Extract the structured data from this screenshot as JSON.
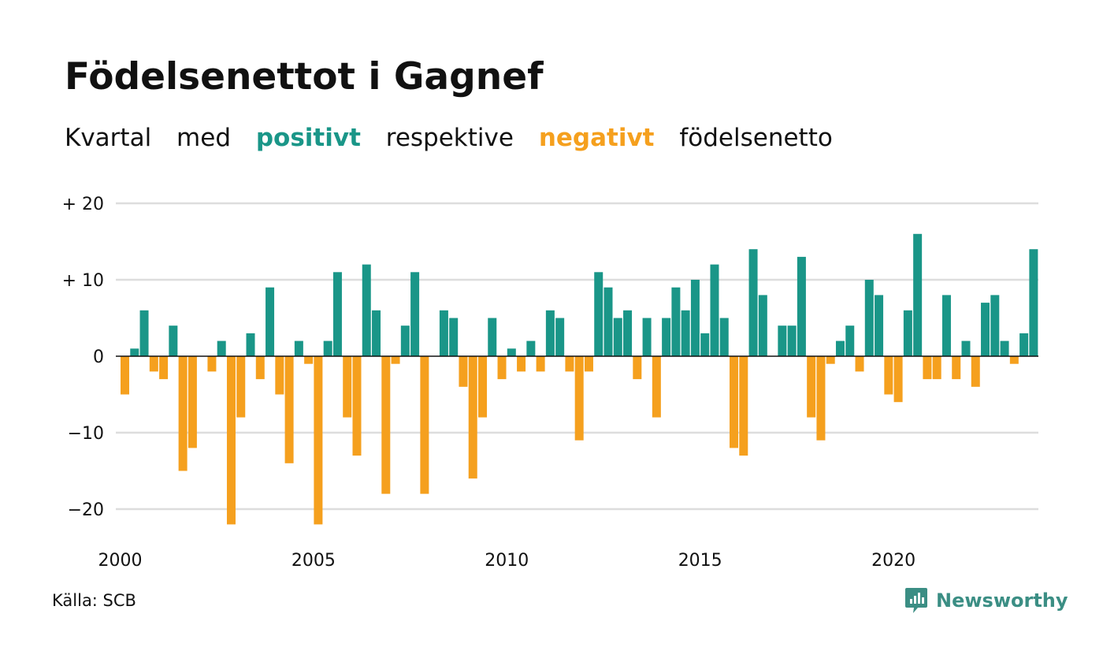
{
  "title": "Födelsenettot i Gagnef",
  "subtitle": {
    "part1": "Kvartal",
    "part2": "med",
    "positive": "positivt",
    "part3": "respektive",
    "negative": "negativt",
    "part4": "födelsenetto"
  },
  "source": "Källa: SCB",
  "brand": "Newsworthy",
  "colors": {
    "positive": "#1a9688",
    "negative": "#f5a01e",
    "grid": "#dddddd",
    "axis": "#111111",
    "brand": "#3b8e84"
  },
  "chart_data": {
    "type": "bar",
    "ylim": [
      -24,
      20
    ],
    "yticks": [
      {
        "value": 20,
        "label": "+ 20"
      },
      {
        "value": 10,
        "label": "+ 10"
      },
      {
        "value": 0,
        "label": "0"
      },
      {
        "value": -10,
        "label": "−10"
      },
      {
        "value": -20,
        "label": "−20"
      }
    ],
    "xticks": [
      {
        "year": 2000,
        "label": "2000"
      },
      {
        "year": 2005,
        "label": "2005"
      },
      {
        "year": 2010,
        "label": "2010"
      },
      {
        "year": 2015,
        "label": "2015"
      },
      {
        "year": 2020,
        "label": "2020"
      }
    ],
    "grid": true,
    "start": "2000 Q1",
    "values": [
      -5,
      1,
      6,
      -2,
      -3,
      4,
      -15,
      -12,
      0,
      -2,
      2,
      -22,
      -8,
      3,
      -3,
      9,
      -5,
      -14,
      2,
      -1,
      -22,
      2,
      11,
      -8,
      -13,
      12,
      6,
      -18,
      -1,
      4,
      11,
      -18,
      0,
      6,
      5,
      -4,
      -16,
      -8,
      5,
      -3,
      1,
      -2,
      2,
      -2,
      6,
      5,
      -2,
      -11,
      -2,
      11,
      9,
      5,
      6,
      -3,
      5,
      -8,
      5,
      9,
      6,
      10,
      3,
      12,
      5,
      -12,
      -13,
      14,
      8,
      0,
      4,
      4,
      13,
      -8,
      -11,
      -1,
      2,
      4,
      -2,
      10,
      8,
      -5,
      -6,
      6,
      16,
      -3,
      -3,
      8,
      -3,
      2,
      -4,
      7,
      8,
      2,
      -1,
      3,
      14
    ]
  }
}
